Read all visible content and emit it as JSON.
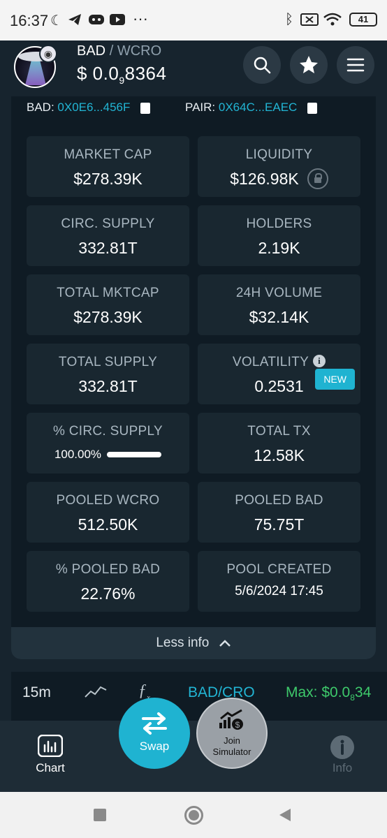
{
  "status_bar": {
    "time": "16:37",
    "battery": "41"
  },
  "header": {
    "base_token": "BAD",
    "separator": "/",
    "quote_token": "WCRO",
    "price_prefix": "$ 0.0",
    "price_subscript": "9",
    "price_digits": "8364"
  },
  "addresses": {
    "bad_label": "BAD:",
    "bad_address": "0X0E6...456F",
    "pair_label": "PAIR:",
    "pair_address": "0X64C...EAEC"
  },
  "stats": [
    {
      "label": "MARKET CAP",
      "value": "$278.39K"
    },
    {
      "label": "LIQUIDITY",
      "value": "$126.98K"
    },
    {
      "label": "CIRC. SUPPLY",
      "value": "332.81T"
    },
    {
      "label": "HOLDERS",
      "value": "2.19K"
    },
    {
      "label": "TOTAL MKTCAP",
      "value": "$278.39K"
    },
    {
      "label": "24H VOLUME",
      "value": "$32.14K"
    },
    {
      "label": "TOTAL SUPPLY",
      "value": "332.81T"
    },
    {
      "label": "VOLATILITY",
      "value": "0.2531",
      "badge": "NEW"
    },
    {
      "label": "% CIRC. SUPPLY",
      "value": "100.00%",
      "progress_fraction": 1.0
    },
    {
      "label": "TOTAL TX",
      "value": "12.58K"
    },
    {
      "label": "POOLED WCRO",
      "value": "512.50K"
    },
    {
      "label": "POOLED BAD",
      "value": "75.75T"
    },
    {
      "label": "% POOLED BAD",
      "value": "22.76%"
    },
    {
      "label": "POOL CREATED",
      "value": "5/6/2024 17:45"
    }
  ],
  "less_info": {
    "label": "Less info"
  },
  "chart_toolbar": {
    "interval": "15m",
    "pair": "BAD/CRO",
    "max_prefix": "Max: $0.0",
    "max_subscript": "8",
    "max_digits": "34"
  },
  "bottom_nav": {
    "chart": "Chart",
    "swap": "Swap",
    "simulator_line1": "Join",
    "simulator_line2": "Simulator",
    "info": "Info"
  },
  "colors": {
    "accent": "#1fb3d1",
    "link": "#22b5d4",
    "green": "#3ec96b",
    "card": "#192730",
    "panel": "#0f1b24"
  }
}
